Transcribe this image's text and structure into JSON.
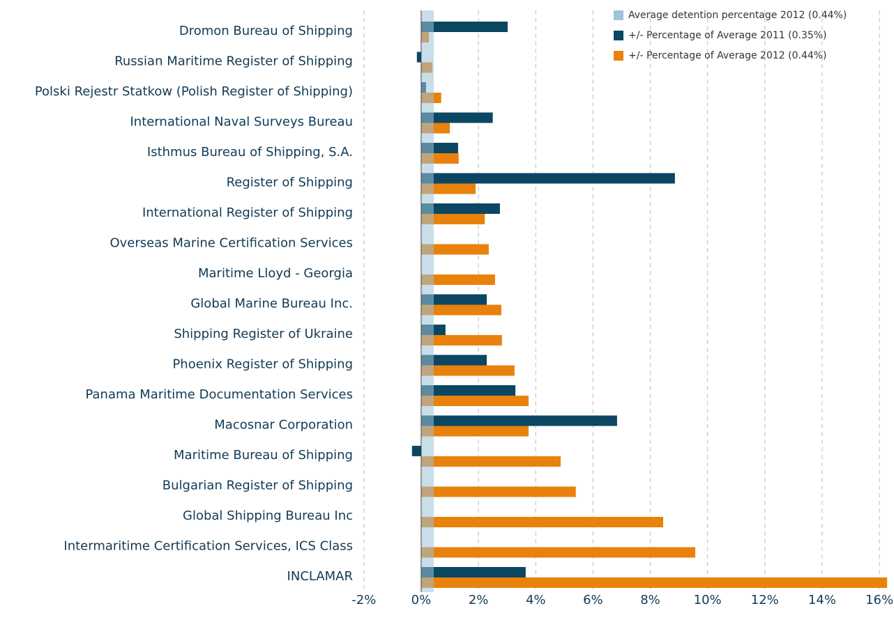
{
  "chart_data": {
    "type": "hbar",
    "categories": [
      "Dromon Bureau of Shipping",
      "Russian Maritime Register of Shipping",
      "Polski Rejestr Statkow (Polish Register of Shipping)",
      "International Naval Surveys Bureau",
      "Isthmus Bureau of Shipping, S.A.",
      "Register of Shipping",
      "International Register of Shipping",
      "Overseas Marine Certification Services",
      "Maritime Lloyd - Georgia",
      "Global Marine Bureau Inc.",
      "Shipping Register of Ukraine",
      "Phoenix Register of Shipping",
      "Panama Maritime Documentation Services",
      "Macosnar Corporation",
      "Maritime Bureau of Shipping",
      "Bulgarian Register of Shipping",
      "Global Shipping Bureau Inc",
      "Intermaritime Certification Services, ICS Class",
      "INCLAMAR"
    ],
    "average": {
      "name": "Average detention percentage 2012 (0.44%)",
      "color": "#9fc3d8",
      "value": 0.44
    },
    "series": [
      {
        "name": "+/- Percentage of Average 2011 (0.35%)",
        "color": "#0b4663",
        "values": [
          3.02,
          -0.15,
          0.17,
          2.5,
          1.29,
          8.86,
          2.75,
          null,
          null,
          2.29,
          0.85,
          2.29,
          3.29,
          6.84,
          -0.32,
          null,
          null,
          null,
          3.65
        ]
      },
      {
        "name": "+/- Percentage of Average 2012 (0.44%)",
        "color": "#e8820c",
        "values": [
          0.27,
          0.39,
          0.7,
          1.0,
          1.31,
          1.9,
          2.22,
          2.36,
          2.58,
          2.8,
          2.82,
          3.26,
          3.75,
          3.75,
          4.87,
          5.4,
          8.45,
          9.57,
          16.27
        ]
      }
    ],
    "xlim": [
      -2.2,
      16.3
    ],
    "xticks": [
      {
        "value": -2,
        "label": "-2%"
      },
      {
        "value": 0,
        "label": "0%"
      },
      {
        "value": 2,
        "label": "2%"
      },
      {
        "value": 4,
        "label": "4%"
      },
      {
        "value": 6,
        "label": "6%"
      },
      {
        "value": 8,
        "label": "8%"
      },
      {
        "value": 10,
        "label": "10%"
      },
      {
        "value": 12,
        "label": "12%"
      },
      {
        "value": 14,
        "label": "14%"
      },
      {
        "value": 16,
        "label": "16%"
      }
    ],
    "grid": true
  }
}
